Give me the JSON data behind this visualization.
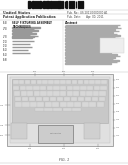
{
  "bg_color": "#ffffff",
  "barcode_color": "#111111",
  "text_dark": "#222222",
  "text_mid": "#444444",
  "text_light": "#888888",
  "line_color": "#aaaaaa",
  "chassis_outer": "#d4d4d4",
  "chassis_inner": "#e8e8e8",
  "chassis_edge": "#999999",
  "keyboard_bg": "#c8c8c8",
  "key_face": "#d8d8d8",
  "key_edge": "#aaaaaa",
  "trackpad_face": "#cccccc",
  "trackpad_edge": "#888888",
  "speaker_face": "#d0d0d0",
  "speaker_edge": "#aaaaaa",
  "fig_label": "FIG. 1"
}
